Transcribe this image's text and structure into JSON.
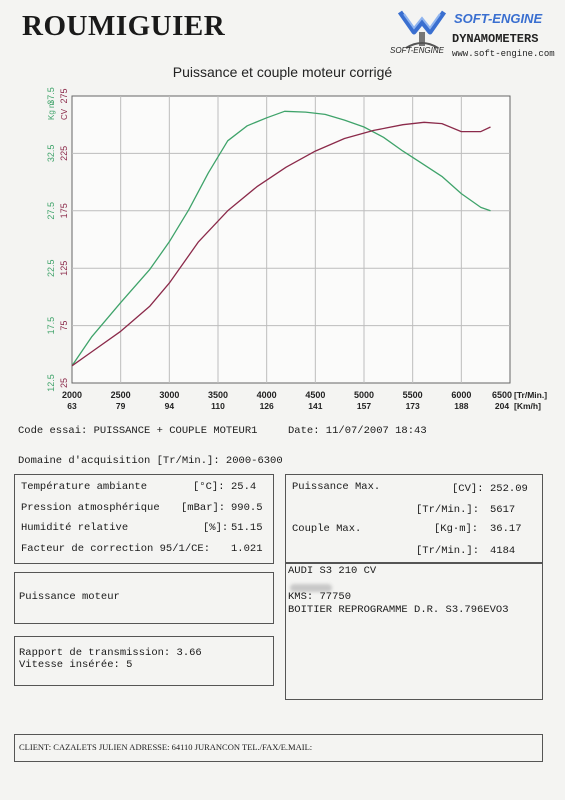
{
  "header": {
    "brand": "ROUMIGUIER",
    "logo_name": "SOFT-ENGINE",
    "logo_sub": "DYNAMOMETERS",
    "logo_small": "SOFT-ENGINE",
    "logo_site": "www.soft-engine.com"
  },
  "chart_data": {
    "type": "line",
    "title": "Puissance et couple moteur corrigé",
    "x": [
      2000,
      2500,
      3000,
      3500,
      4000,
      4500,
      5000,
      5500,
      6000,
      6300
    ],
    "xlabel_primary": "[Tr/Min.]",
    "xlabel_secondary": "[Km/h]",
    "x_ticks": [
      "2000",
      "2500",
      "3000",
      "3500",
      "4000",
      "4500",
      "5000",
      "5500",
      "6000",
      "6500"
    ],
    "x_ticks_speed": [
      "63",
      "79",
      "94",
      "110",
      "126",
      "141",
      "157",
      "173",
      "188",
      "204"
    ],
    "xlim": [
      2000,
      6500
    ],
    "y_left_label": "Kg m",
    "y_left_ticks": [
      "12.5",
      "17.5",
      "22.5",
      "27.5",
      "32.5",
      "37.5"
    ],
    "y_left_lim": [
      12.5,
      37.5
    ],
    "y_right_label": "CV",
    "y_right_ticks": [
      "25",
      "75",
      "125",
      "175",
      "225",
      "275"
    ],
    "y_right_lim": [
      25,
      275
    ],
    "grid": true,
    "colors": {
      "torque": "#3fa36a",
      "power": "#8b2a4a"
    },
    "series": [
      {
        "axis": "left",
        "x": [
          2000,
          2200,
          2500,
          2800,
          3000,
          3200,
          3400,
          3600,
          3800,
          4000,
          4184,
          4400,
          4600,
          4800,
          5000,
          5200,
          5400,
          5600,
          5800,
          6000,
          6200,
          6300
        ],
        "values": [
          14.0,
          16.5,
          19.5,
          22.4,
          24.8,
          27.6,
          30.8,
          33.6,
          34.9,
          35.6,
          36.17,
          36.1,
          35.9,
          35.4,
          34.8,
          33.9,
          32.7,
          31.6,
          30.5,
          29.0,
          27.8,
          27.5
        ]
      },
      {
        "axis": "right",
        "x": [
          2000,
          2200,
          2500,
          2800,
          3000,
          3300,
          3600,
          3900,
          4200,
          4500,
          4800,
          5100,
          5400,
          5617,
          5800,
          6000,
          6200,
          6300
        ],
        "values": [
          40,
          52,
          70,
          92,
          112,
          148,
          175,
          196,
          213,
          227,
          238,
          245,
          250,
          252.09,
          251,
          244,
          244,
          248
        ]
      }
    ]
  },
  "info": {
    "code_essai": "Code essai: PUISSANCE + COUPLE MOTEUR1",
    "date": "Date: 11/07/2007 18:43",
    "domaine": "Domaine d'acquisition [Tr/Min.]: 2000-6300",
    "env": {
      "temp_label": "Température ambiante",
      "temp_unit": "[°C]:",
      "temp_val": "25.4",
      "press_label": "Pression atmosphérique",
      "press_unit": "[mBar]:",
      "press_val": "990.5",
      "hum_label": "Humidité relative",
      "hum_unit": "[%]:",
      "hum_val": "51.15",
      "corr_label": "Facteur de correction 95/1/CE:",
      "corr_val": "1.021"
    },
    "max": {
      "power_label": "Puissance Max.",
      "power_unit": "[CV]:",
      "power_val": "252.09",
      "power_rpm_unit": "[Tr/Min.]:",
      "power_rpm_val": "5617",
      "torque_label": "Couple Max.",
      "torque_unit": "[Kg·m]:",
      "torque_val": "36.17",
      "torque_rpm_unit": "[Tr/Min.]:",
      "torque_rpm_val": "4184"
    },
    "puissance_moteur": "Puissance moteur",
    "vehicle": {
      "line1": "AUDI S3 210 CV",
      "line3": "KMS: 77750",
      "line4": "BOITIER REPROGRAMME D.R. S3.796EVO3"
    },
    "rapport": "Rapport de transmission: 3.66",
    "vitesse": "Vitesse insérée: 5",
    "client": "CLIENT: CAZALETS JULIEN  ADRESSE: 64110 JURANCON  TEL./FAX/E.MAIL:"
  }
}
